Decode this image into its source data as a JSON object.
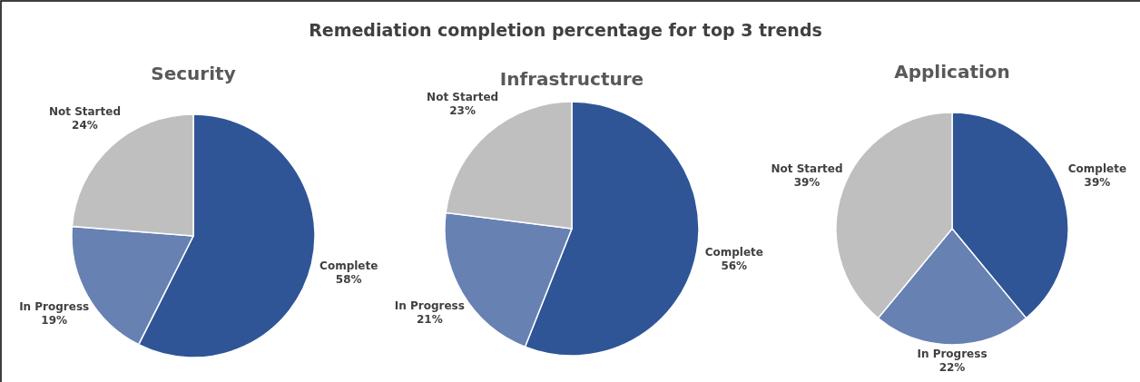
{
  "chart_data": [
    {
      "type": "pie",
      "title": "Security",
      "annotations": [
        "Remediation completion percentage for top 3 trends"
      ],
      "categories": [
        "Complete",
        "In Progress",
        "Not Started"
      ],
      "values": [
        58,
        19,
        24
      ],
      "value_labels": [
        "58%",
        "19%",
        "24%"
      ],
      "colors": [
        "#2f5597",
        "#6781b3",
        "#bfbfbf"
      ]
    },
    {
      "type": "pie",
      "title": "Infrastructure",
      "categories": [
        "Complete",
        "In Progress",
        "Not Started"
      ],
      "values": [
        56,
        21,
        23
      ],
      "value_labels": [
        "56%",
        "21%",
        "23%"
      ],
      "colors": [
        "#2f5597",
        "#6781b3",
        "#bfbfbf"
      ]
    },
    {
      "type": "pie",
      "title": "Application",
      "categories": [
        "Complete",
        "In Progress",
        "Not Started"
      ],
      "values": [
        39,
        22,
        39
      ],
      "value_labels": [
        "39%",
        "22%",
        "39%"
      ],
      "colors": [
        "#2f5597",
        "#6781b3",
        "#bfbfbf"
      ]
    }
  ]
}
